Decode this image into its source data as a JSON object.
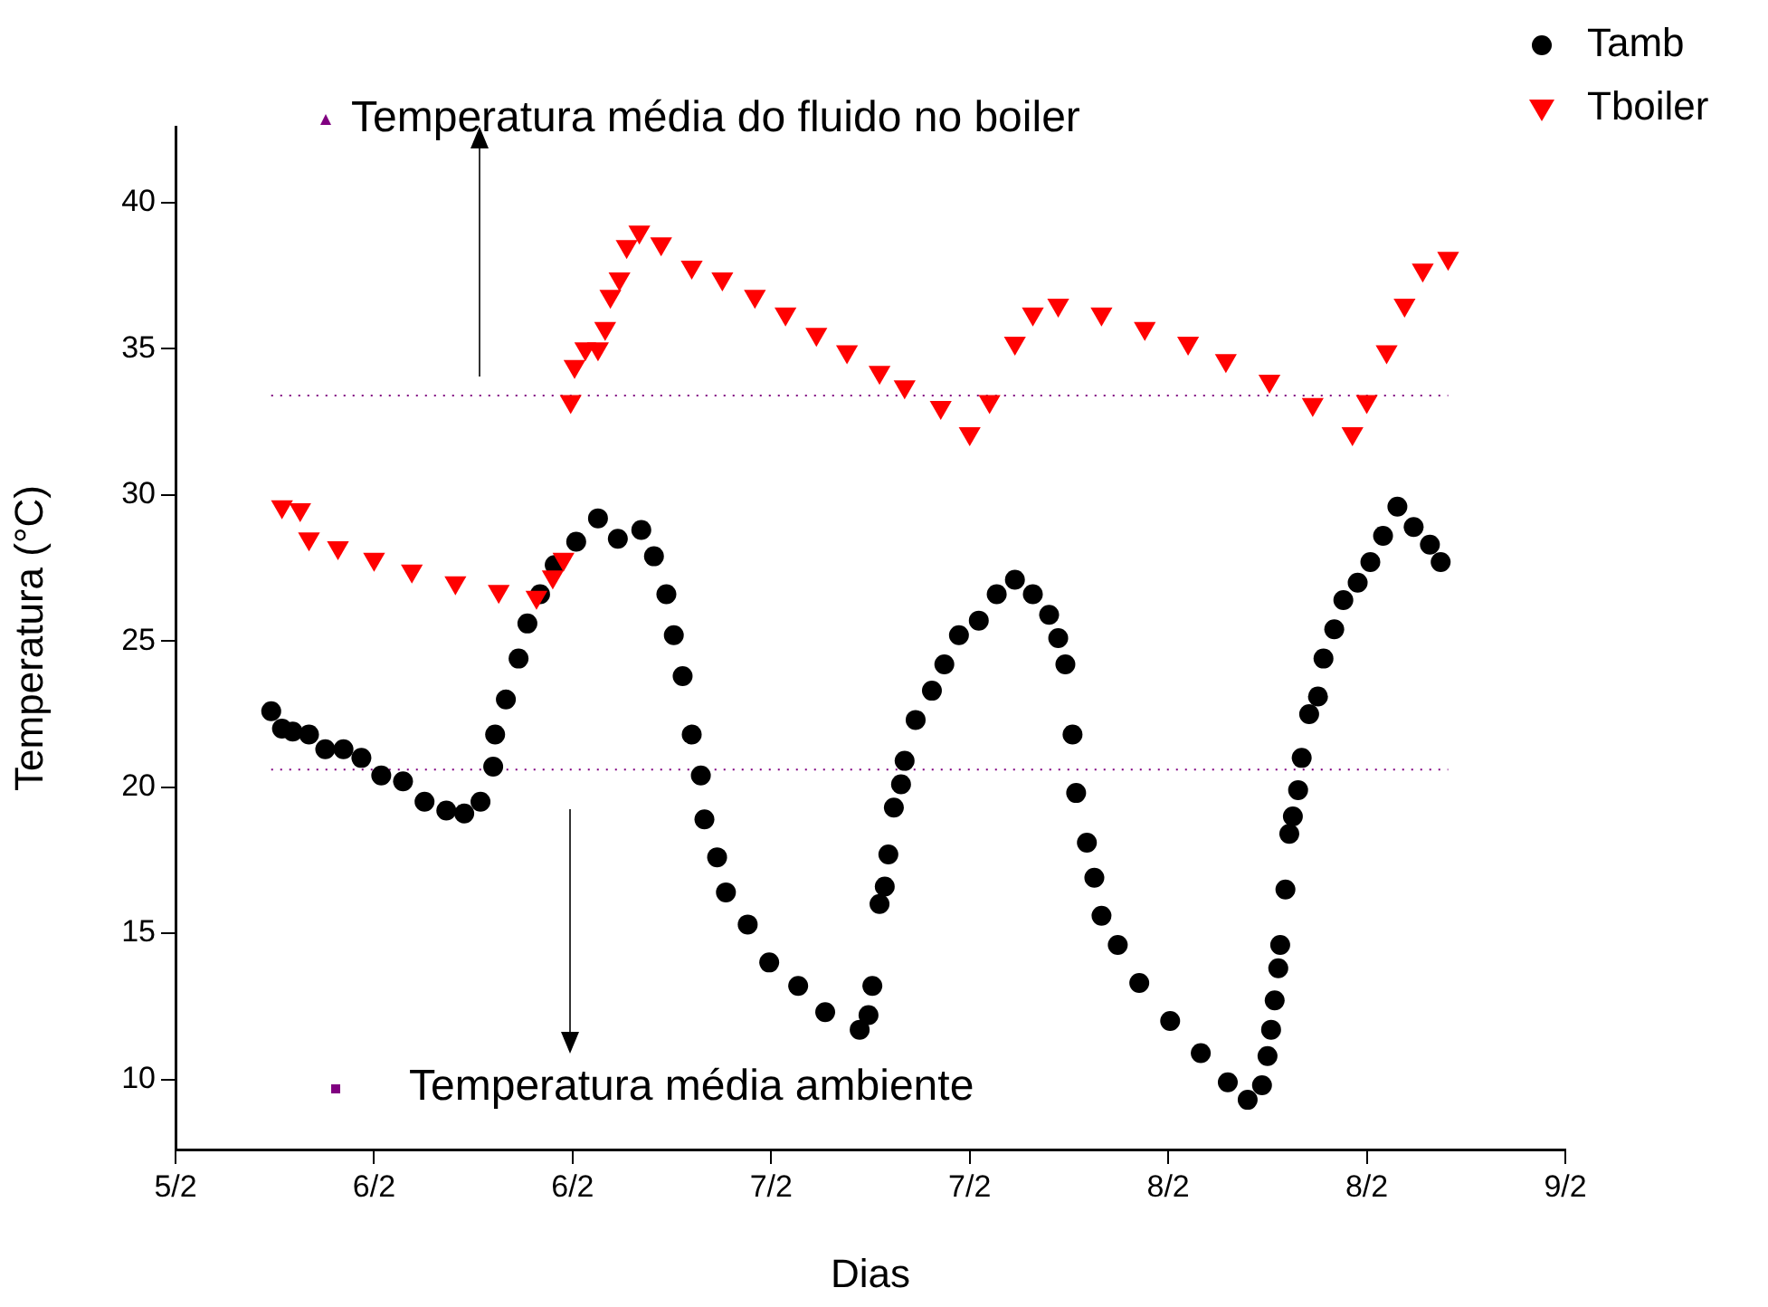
{
  "chart_data": {
    "type": "scatter",
    "xlabel": "Dias",
    "ylabel": "Temperatura (°C)",
    "xlim": [
      "--02-05",
      "--02-08T12:00"
    ],
    "xticks": [
      {
        "value": "--02-05",
        "label": "5/2"
      },
      {
        "value": "--02-05T12:00",
        "label": "6/2"
      },
      {
        "value": "--02-06",
        "label": "6/2"
      },
      {
        "value": "--02-06T12:00",
        "label": "7/2"
      },
      {
        "value": "--02-07",
        "label": "7/2"
      },
      {
        "value": "--02-07T12:00",
        "label": "8/2"
      },
      {
        "value": "--02-08",
        "label": "8/2"
      },
      {
        "value": "--02-08T12:00",
        "label": "9/2"
      }
    ],
    "ylim": [
      7.6,
      42.6
    ],
    "yticks": [
      10,
      15,
      20,
      25,
      30,
      35,
      40
    ],
    "grid": false,
    "legend": "top right",
    "series": [
      {
        "name": "Tamb",
        "color": "#000000",
        "marker": "circle",
        "x": [
          "--02-05T05:47",
          "--02-05T06:26",
          "--02-05T07:05",
          "--02-05T08:04",
          "--02-05T09:03",
          "--02-05T10:09",
          "--02-05T11:14",
          "--02-05T12:26",
          "--02-05T13:45",
          "--02-05T15:03",
          "--02-05T16:22",
          "--02-05T17:27",
          "--02-05T18:26",
          "--02-05T19:12",
          "--02-05T19:19",
          "--02-05T19:58",
          "--02-05T20:44",
          "--02-05T21:16",
          "--02-05T22:02",
          "--02-05T22:55",
          "--02-06T00:13",
          "--02-06T01:32",
          "--02-06T02:44",
          "--02-06T04:09",
          "--02-06T04:55",
          "--02-06T05:40",
          "--02-06T06:07",
          "--02-06T06:39",
          "--02-06T07:12",
          "--02-06T07:45",
          "--02-06T07:58",
          "--02-06T08:44",
          "--02-06T09:16",
          "--02-06T10:35",
          "--02-06T11:53",
          "--02-06T13:38",
          "--02-06T15:16",
          "--02-06T17:21",
          "--02-06T17:53",
          "--02-06T18:07",
          "--02-06T18:33",
          "--02-06T18:52",
          "--02-06T19:05",
          "--02-06T19:25",
          "--02-06T19:51",
          "--02-06T20:04",
          "--02-06T20:44",
          "--02-06T21:43",
          "--02-06T22:28",
          "--02-06T23:21",
          "--02-07T00:33",
          "--02-07T01:38",
          "--02-07T02:44",
          "--02-07T03:49",
          "--02-07T04:48",
          "--02-07T05:21",
          "--02-07T05:47",
          "--02-07T06:13",
          "--02-07T06:26",
          "--02-07T07:05",
          "--02-07T07:32",
          "--02-07T07:58",
          "--02-07T08:57",
          "--02-07T10:15",
          "--02-07T12:07",
          "--02-07T13:58",
          "--02-07T15:36",
          "--02-07T16:48",
          "--02-07T17:40",
          "--02-07T18:00",
          "--02-07T18:13",
          "--02-07T18:26",
          "--02-07T18:39",
          "--02-07T18:46",
          "--02-07T19:05",
          "--02-07T19:19",
          "--02-07T19:32",
          "--02-07T19:51",
          "--02-07T20:04",
          "--02-07T20:31",
          "--02-07T21:03",
          "--02-07T21:23",
          "--02-07T22:02",
          "--02-07T22:35",
          "--02-07T23:27",
          "--02-08T00:13",
          "--02-08T00:59",
          "--02-08T01:51",
          "--02-08T02:50",
          "--02-08T03:49",
          "--02-08T04:28"
        ],
        "values": [
          22.6,
          22.0,
          21.9,
          21.8,
          21.3,
          21.3,
          21.0,
          20.4,
          20.2,
          19.5,
          19.2,
          19.1,
          19.5,
          20.7,
          21.8,
          23.0,
          24.4,
          25.6,
          26.6,
          27.6,
          28.4,
          29.2,
          28.5,
          28.8,
          27.9,
          26.6,
          25.2,
          23.8,
          21.8,
          20.4,
          18.9,
          17.6,
          16.4,
          15.3,
          14.0,
          13.2,
          12.3,
          11.7,
          12.2,
          13.2,
          16.0,
          16.6,
          17.7,
          19.3,
          20.1,
          20.9,
          22.3,
          23.3,
          24.2,
          25.2,
          25.7,
          26.6,
          27.1,
          26.6,
          25.9,
          25.1,
          24.2,
          21.8,
          19.8,
          18.1,
          16.9,
          15.6,
          14.6,
          13.3,
          12.0,
          10.9,
          9.9,
          9.3,
          9.8,
          10.8,
          11.7,
          12.7,
          13.8,
          14.6,
          16.5,
          18.4,
          19.0,
          19.9,
          21.0,
          22.5,
          23.1,
          24.4,
          25.4,
          26.4,
          27.0,
          27.7,
          28.6,
          29.6,
          28.9,
          28.3,
          27.7
        ]
      },
      {
        "name": "Tboiler",
        "color": "#ff0000",
        "marker": "triangle",
        "x": [
          "--02-05T06:26",
          "--02-05T07:32",
          "--02-05T08:04",
          "--02-05T09:49",
          "--02-05T12:00",
          "--02-05T14:17",
          "--02-05T16:55",
          "--02-05T19:32",
          "--02-05T21:49",
          "--02-05T22:48",
          "--02-05T23:27",
          "--02-05T23:53",
          "--02-06T00:07",
          "--02-06T00:46",
          "--02-06T01:32",
          "--02-06T01:58",
          "--02-06T02:17",
          "--02-06T02:50",
          "--02-06T03:16",
          "--02-06T04:02",
          "--02-06T05:21",
          "--02-06T07:12",
          "--02-06T09:03",
          "--02-06T11:01",
          "--02-06T12:52",
          "--02-06T14:44",
          "--02-06T16:35",
          "--02-06T18:33",
          "--02-06T20:04",
          "--02-06T22:15",
          "--02-07T00:00",
          "--02-07T01:12",
          "--02-07T02:44",
          "--02-07T03:49",
          "--02-07T05:21",
          "--02-07T07:58",
          "--02-07T10:35",
          "--02-07T13:12",
          "--02-07T15:29",
          "--02-07T18:07",
          "--02-07T20:44",
          "--02-07T23:08",
          "--02-08T00:00",
          "--02-08T01:12",
          "--02-08T02:17",
          "--02-08T03:23",
          "--02-08T04:55"
        ],
        "values": [
          29.6,
          29.5,
          28.5,
          28.2,
          27.8,
          27.4,
          27.0,
          26.7,
          26.5,
          27.2,
          27.8,
          33.2,
          34.4,
          35.0,
          35.0,
          35.7,
          36.8,
          37.4,
          38.5,
          39.0,
          38.6,
          37.8,
          37.4,
          36.8,
          36.2,
          35.5,
          34.9,
          34.2,
          33.7,
          33.0,
          32.1,
          33.2,
          35.2,
          36.2,
          36.5,
          36.2,
          35.7,
          35.2,
          34.6,
          33.9,
          33.1,
          32.1,
          33.2,
          34.9,
          36.5,
          37.7,
          38.1
        ]
      }
    ],
    "ref_lines": [
      {
        "axis": "y",
        "value": 33.4,
        "label": "Temperatura média do fluido no boiler",
        "color": "#800080",
        "line_style": "dotted"
      },
      {
        "axis": "y",
        "value": 20.6,
        "label": "Temperatura média ambiente",
        "color": "#800080",
        "line_style": "dotted"
      }
    ]
  }
}
